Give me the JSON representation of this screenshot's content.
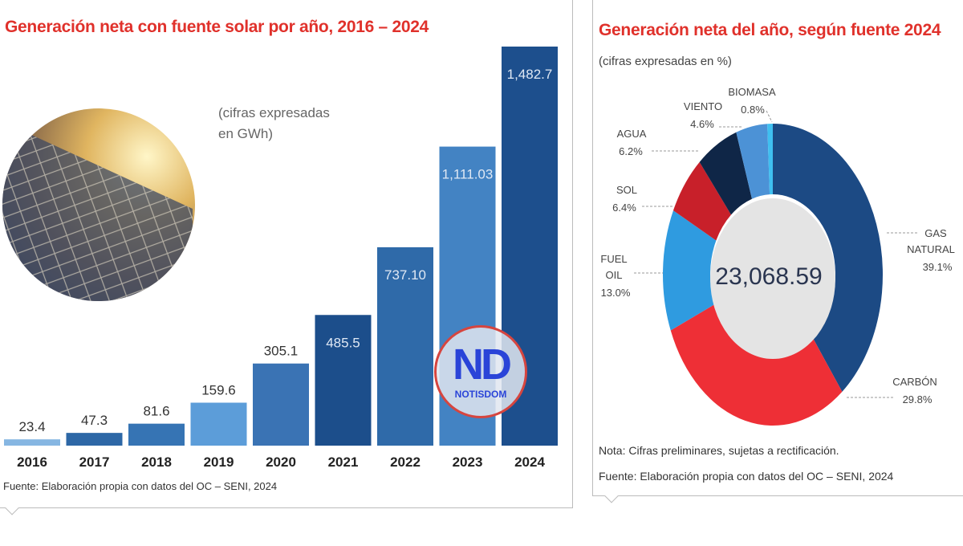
{
  "chart_data": [
    {
      "type": "bar",
      "title": "Generación neta con fuente solar por año, 2016 – 2024",
      "subtitle": "(cifras expresadas en GWh)",
      "categories": [
        "2016",
        "2017",
        "2018",
        "2019",
        "2020",
        "2021",
        "2022",
        "2023",
        "2024"
      ],
      "values": [
        23.4,
        47.3,
        81.6,
        159.6,
        305.1,
        485.5,
        737.1,
        1111.03,
        1482.7
      ],
      "labels": [
        "23.4",
        "47.3",
        "81.6",
        "159.6",
        "305.1",
        "485.5",
        "737.10",
        "1,111.03",
        "1,482.7"
      ],
      "colors": [
        "#86b6e2",
        "#2d67a6",
        "#3674b4",
        "#5c9dd9",
        "#3a73b4",
        "#1c4e8b",
        "#2f6aa9",
        "#4383c3",
        "#1d4f8d"
      ],
      "source": "Fuente:  Elaboración propia con datos del OC – SENI, 2024",
      "ylim": [
        0,
        1482.7
      ]
    },
    {
      "type": "pie",
      "title": "Generación neta del año, según fuente 2024",
      "subtitle": "(cifras expresadas en %)",
      "center_value": "23,068.59",
      "slices": [
        {
          "name": "GAS NATURAL",
          "value": 39.1,
          "label": "39.1%",
          "color": "#1c4a84"
        },
        {
          "name": "CARBÓN",
          "value": 29.8,
          "label": "29.8%",
          "color": "#ee2f36"
        },
        {
          "name": "FUEL OIL",
          "value": 13.0,
          "label": "13.0%",
          "color": "#2f9be0"
        },
        {
          "name": "SOL",
          "value": 6.4,
          "label": "6.4%",
          "color": "#c8202a"
        },
        {
          "name": "AGUA",
          "value": 6.2,
          "label": "6.2%",
          "color": "#0f2647"
        },
        {
          "name": "VIENTO",
          "value": 4.6,
          "label": "4.6%",
          "color": "#4c92d6"
        },
        {
          "name": "BIOMASA",
          "value": 0.8,
          "label": "0.8%",
          "color": "#3fc0f0"
        }
      ],
      "note": "Nota: Cifras preliminares, sujetas a rectificación.",
      "source": "Fuente: Elaboración propia con datos del OC – SENI, 2024"
    }
  ],
  "watermark": {
    "logo": "ND",
    "name": "NOTISDOM"
  }
}
